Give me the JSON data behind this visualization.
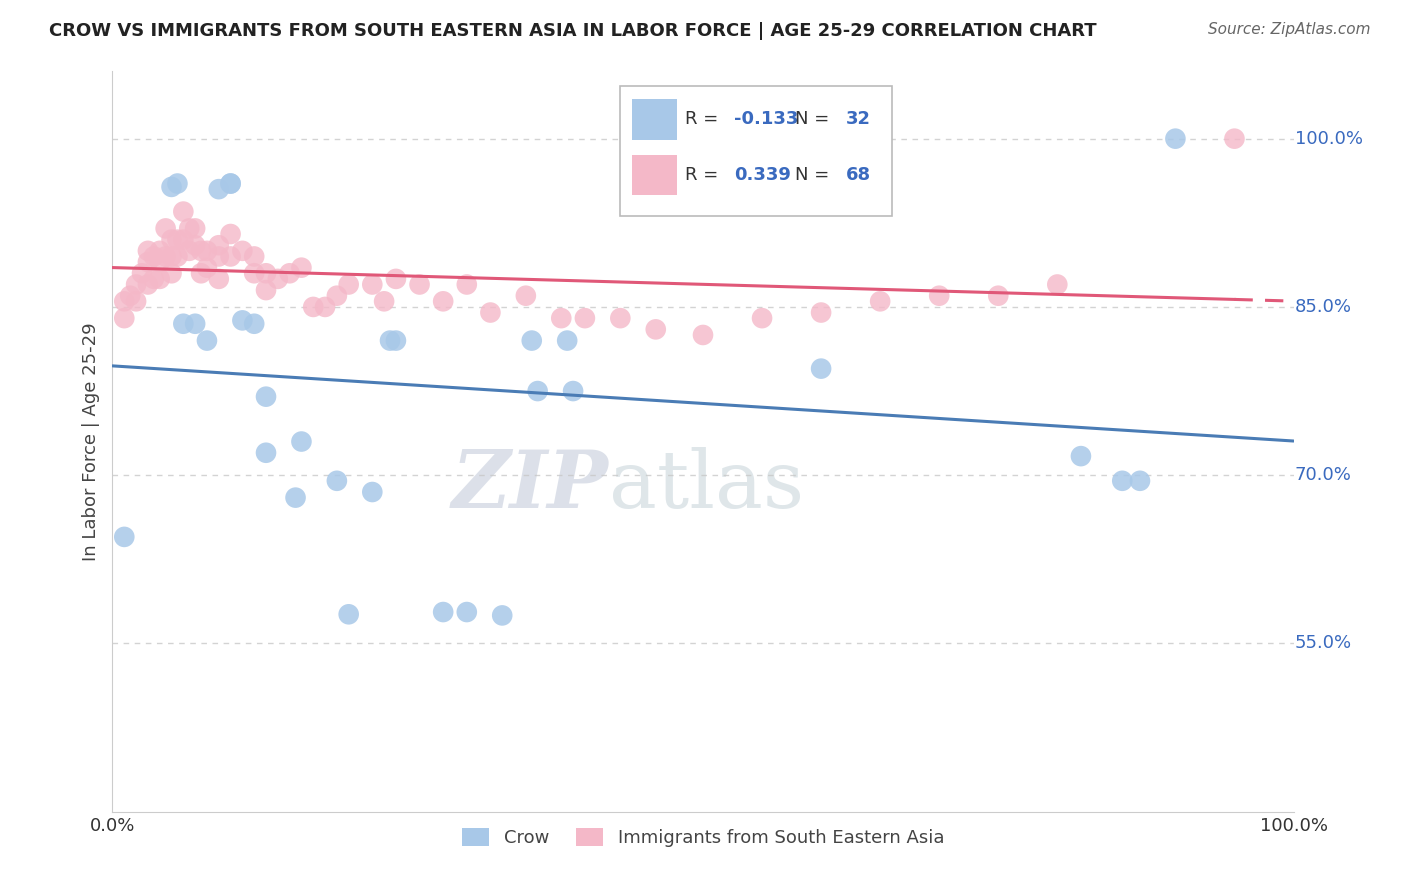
{
  "title": "CROW VS IMMIGRANTS FROM SOUTH EASTERN ASIA IN LABOR FORCE | AGE 25-29 CORRELATION CHART",
  "source": "Source: ZipAtlas.com",
  "ylabel": "In Labor Force | Age 25-29",
  "legend_label_1": "Crow",
  "legend_label_2": "Immigrants from South Eastern Asia",
  "R1": -0.133,
  "N1": 32,
  "R2": 0.339,
  "N2": 68,
  "color_blue": "#a8c8e8",
  "color_pink": "#f4b8c8",
  "line_color_blue": "#4a7cb5",
  "line_color_pink": "#e05878",
  "xlim": [
    0.0,
    1.0
  ],
  "ylim": [
    0.4,
    1.06
  ],
  "yticks": [
    0.55,
    0.7,
    0.85,
    1.0
  ],
  "ytick_labels": [
    "55.0%",
    "70.0%",
    "85.0%",
    "100.0%"
  ],
  "xticks": [
    0.0,
    0.25,
    0.5,
    0.75,
    1.0
  ],
  "xtick_labels": [
    "0.0%",
    "",
    "",
    "",
    "100.0%"
  ],
  "blue_x": [
    0.01,
    0.05,
    0.055,
    0.06,
    0.07,
    0.08,
    0.09,
    0.1,
    0.1,
    0.11,
    0.12,
    0.13,
    0.13,
    0.155,
    0.16,
    0.19,
    0.2,
    0.22,
    0.235,
    0.24,
    0.28,
    0.3,
    0.33,
    0.355,
    0.36,
    0.385,
    0.39,
    0.6,
    0.82,
    0.855,
    0.87,
    0.9
  ],
  "blue_y": [
    0.645,
    0.957,
    0.96,
    0.835,
    0.835,
    0.82,
    0.955,
    0.96,
    0.96,
    0.838,
    0.835,
    0.77,
    0.72,
    0.68,
    0.73,
    0.695,
    0.576,
    0.685,
    0.82,
    0.82,
    0.578,
    0.578,
    0.575,
    0.82,
    0.775,
    0.82,
    0.775,
    0.795,
    0.717,
    0.695,
    0.695,
    1.0
  ],
  "pink_x": [
    0.01,
    0.01,
    0.015,
    0.02,
    0.02,
    0.025,
    0.03,
    0.03,
    0.03,
    0.035,
    0.035,
    0.04,
    0.04,
    0.04,
    0.045,
    0.045,
    0.05,
    0.05,
    0.05,
    0.055,
    0.055,
    0.06,
    0.06,
    0.065,
    0.065,
    0.07,
    0.07,
    0.075,
    0.075,
    0.08,
    0.08,
    0.09,
    0.09,
    0.09,
    0.1,
    0.1,
    0.11,
    0.12,
    0.12,
    0.13,
    0.13,
    0.14,
    0.15,
    0.16,
    0.17,
    0.18,
    0.19,
    0.2,
    0.22,
    0.23,
    0.24,
    0.26,
    0.28,
    0.3,
    0.32,
    0.35,
    0.38,
    0.4,
    0.43,
    0.46,
    0.5,
    0.55,
    0.6,
    0.65,
    0.7,
    0.75,
    0.8,
    0.95
  ],
  "pink_y": [
    0.855,
    0.84,
    0.86,
    0.87,
    0.855,
    0.88,
    0.9,
    0.89,
    0.87,
    0.895,
    0.875,
    0.9,
    0.89,
    0.875,
    0.92,
    0.895,
    0.91,
    0.895,
    0.88,
    0.91,
    0.895,
    0.935,
    0.91,
    0.92,
    0.9,
    0.92,
    0.905,
    0.9,
    0.88,
    0.9,
    0.885,
    0.905,
    0.895,
    0.875,
    0.915,
    0.895,
    0.9,
    0.895,
    0.88,
    0.88,
    0.865,
    0.875,
    0.88,
    0.885,
    0.85,
    0.85,
    0.86,
    0.87,
    0.87,
    0.855,
    0.875,
    0.87,
    0.855,
    0.87,
    0.845,
    0.86,
    0.84,
    0.84,
    0.84,
    0.83,
    0.825,
    0.84,
    0.845,
    0.855,
    0.86,
    0.86,
    0.87,
    1.0
  ],
  "watermark_zip": "ZIP",
  "watermark_atlas": "atlas",
  "background_color": "#ffffff",
  "grid_color": "#c8c8c8"
}
